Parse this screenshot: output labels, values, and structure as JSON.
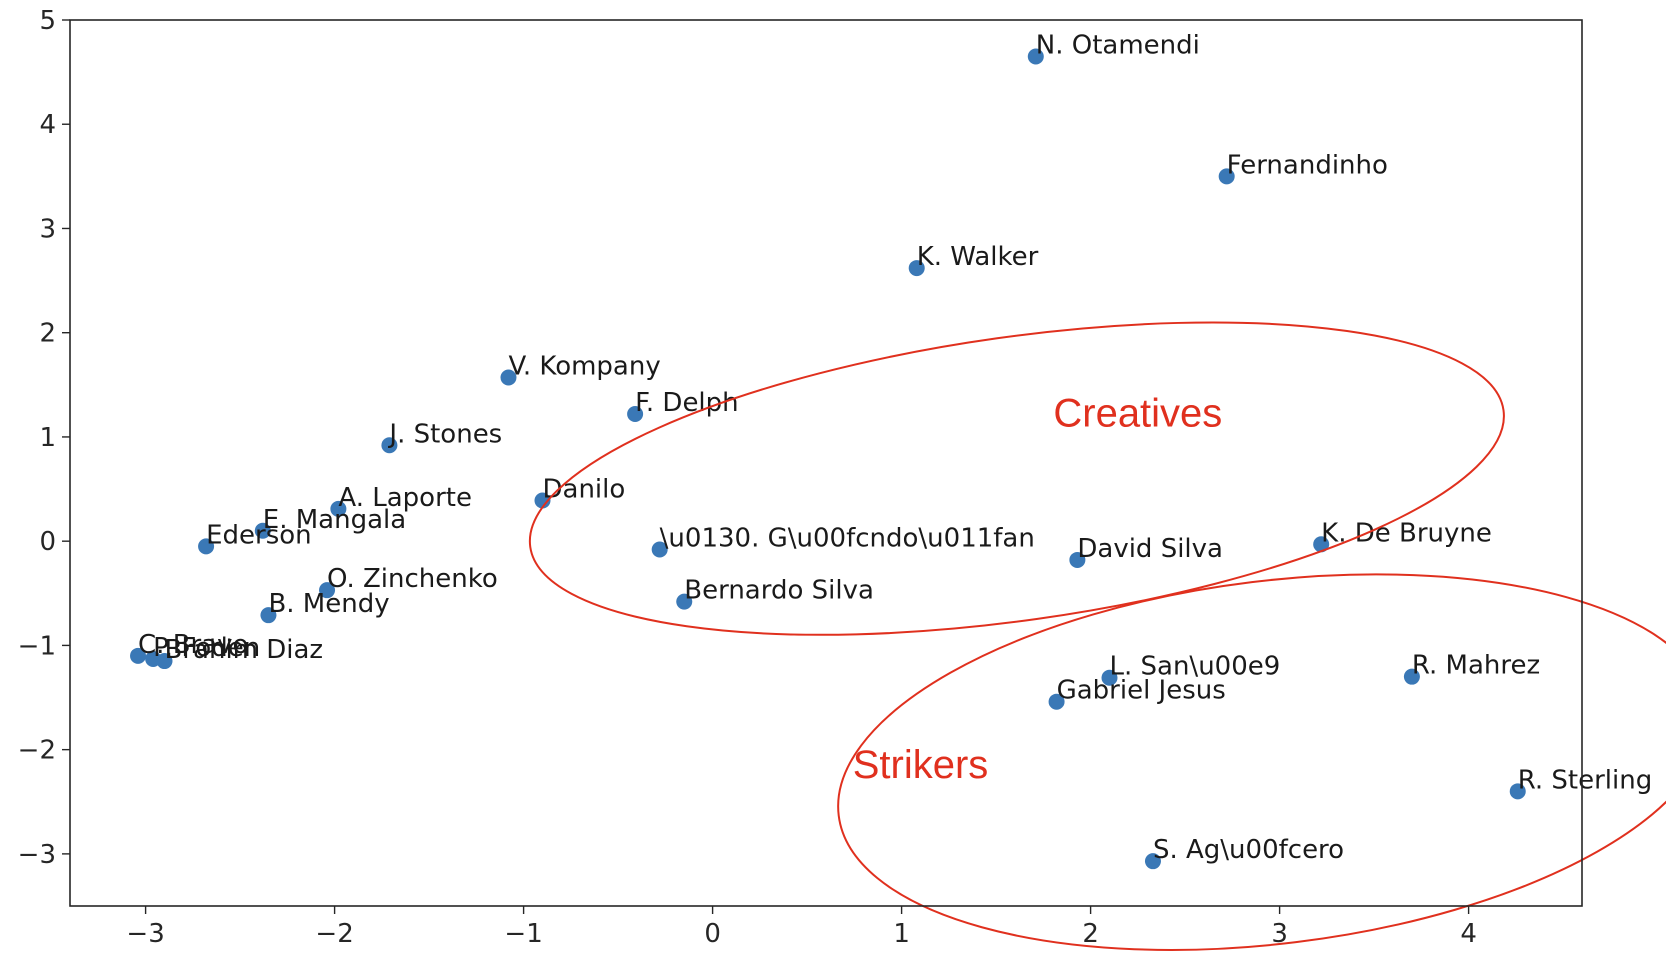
{
  "chart_data": {
    "type": "scatter",
    "title": "",
    "xlabel": "",
    "ylabel": "",
    "xlim": [
      -3.4,
      4.6
    ],
    "ylim": [
      -3.5,
      5.0
    ],
    "xticks": [
      -3,
      -2,
      -1,
      0,
      1,
      2,
      3,
      4
    ],
    "yticks": [
      -3,
      -2,
      -1,
      0,
      1,
      2,
      3,
      4,
      5
    ],
    "xtick_labels": [
      "−3",
      "−2",
      "−1",
      "0",
      "1",
      "2",
      "3",
      "4"
    ],
    "ytick_labels": [
      "−3",
      "−2",
      "−1",
      "0",
      "1",
      "2",
      "3",
      "4",
      "5"
    ],
    "grid": false,
    "colors": {
      "points": "#3a78b6",
      "annotation": "#e0301e",
      "axes": "#262626"
    },
    "points": [
      {
        "label": "N. Otamendi",
        "x": 1.71,
        "y": 4.65
      },
      {
        "label": "Fernandinho",
        "x": 2.72,
        "y": 3.5
      },
      {
        "label": "K. Walker",
        "x": 1.08,
        "y": 2.62
      },
      {
        "label": "V. Kompany",
        "x": -1.08,
        "y": 1.57
      },
      {
        "label": "F. Delph",
        "x": -0.41,
        "y": 1.22
      },
      {
        "label": "J. Stones",
        "x": -1.71,
        "y": 0.92
      },
      {
        "label": "Danilo",
        "x": -0.9,
        "y": 0.39
      },
      {
        "label": "A. Laporte",
        "x": -1.98,
        "y": 0.31
      },
      {
        "label": "E. Mangala",
        "x": -2.38,
        "y": 0.1
      },
      {
        "label": "Ederson",
        "x": -2.68,
        "y": -0.05
      },
      {
        "label": "\\u0130. G\\u00fcndo\\u011fan",
        "x": -0.28,
        "y": -0.08
      },
      {
        "label": "David Silva",
        "x": 1.93,
        "y": -0.18
      },
      {
        "label": "K. De Bruyne",
        "x": 3.22,
        "y": -0.03
      },
      {
        "label": "O. Zinchenko",
        "x": -2.04,
        "y": -0.47
      },
      {
        "label": "Bernardo Silva",
        "x": -0.15,
        "y": -0.58
      },
      {
        "label": "B. Mendy",
        "x": -2.35,
        "y": -0.71
      },
      {
        "label": "C. Bravo",
        "x": -3.04,
        "y": -1.1
      },
      {
        "label": "P. Foden",
        "x": -2.96,
        "y": -1.13
      },
      {
        "label": "Brahim Diaz",
        "x": -2.9,
        "y": -1.15
      },
      {
        "label": "L. San\\u00e9",
        "x": 2.1,
        "y": -1.31
      },
      {
        "label": "R. Mahrez",
        "x": 3.7,
        "y": -1.3
      },
      {
        "label": "Gabriel Jesus",
        "x": 1.82,
        "y": -1.54
      },
      {
        "label": "R. Sterling",
        "x": 4.26,
        "y": -2.4
      },
      {
        "label": "S. Ag\\u00fcero",
        "x": 2.33,
        "y": -3.07
      }
    ],
    "annotations": [
      {
        "label": "Creatives",
        "cx": 1.61,
        "cy": 0.6,
        "rx": 2.6,
        "ry": 1.36,
        "angle": -8,
        "label_x": 2.25,
        "label_y": 1.1
      },
      {
        "label": "Strikers",
        "cx": 2.97,
        "cy": -2.12,
        "rx": 2.32,
        "ry": 1.74,
        "angle": -7,
        "label_x": 1.1,
        "label_y": -2.27
      }
    ]
  }
}
